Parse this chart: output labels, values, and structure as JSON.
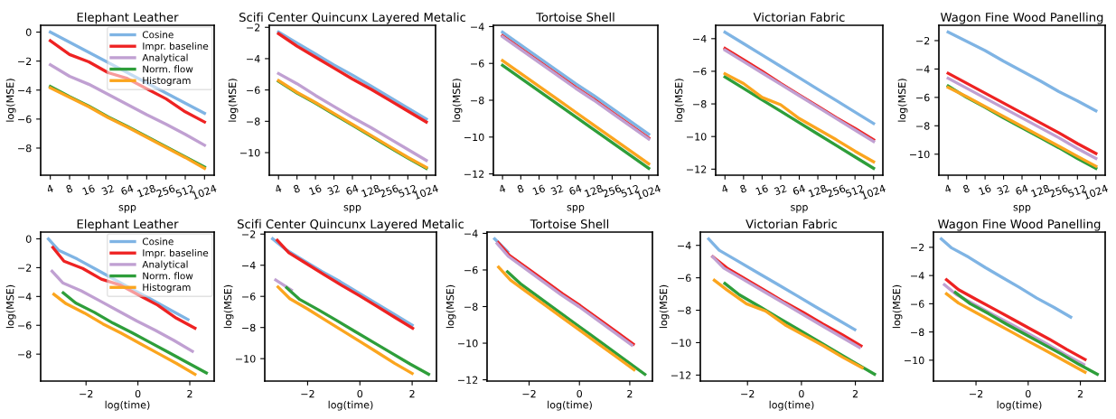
{
  "chart_data": [
    {
      "type": "line",
      "title": "Elephant Leather",
      "xlabel": "spp",
      "ylabel": "log(MSE)",
      "categories": [
        "4",
        "8",
        "16",
        "32",
        "64",
        "128",
        "256",
        "512",
        "1024"
      ],
      "ylim": [
        -9.87,
        0.47
      ],
      "yticks": [
        {
          "value": 0,
          "label": "0"
        },
        {
          "value": -2,
          "label": "−2"
        },
        {
          "value": -4,
          "label": "−4"
        },
        {
          "value": -6,
          "label": "−6"
        },
        {
          "value": -8,
          "label": "−8"
        }
      ],
      "legend": "top right",
      "series": [
        {
          "name": "Cosine",
          "color": "#7fb4e4",
          "values": [
            0,
            -0.7,
            -1.4,
            -2.1,
            -2.8,
            -3.5,
            -4.2,
            -4.9,
            -5.6
          ]
        },
        {
          "name": "Impr. baseline",
          "color": "#ee2222",
          "values": [
            -0.6,
            -1.55,
            -2.05,
            -2.8,
            -3.2,
            -3.9,
            -4.6,
            -5.5,
            -6.2
          ]
        },
        {
          "name": "Analytical",
          "color": "#c0a0d2",
          "values": [
            -2.25,
            -3.05,
            -3.6,
            -4.3,
            -5.0,
            -5.7,
            -6.35,
            -7.05,
            -7.8
          ]
        },
        {
          "name": "Norm. flow",
          "color": "#2e9e3a",
          "values": [
            -3.75,
            -4.45,
            -5.1,
            -5.85,
            -6.5,
            -7.2,
            -7.9,
            -8.6,
            -9.3
          ]
        },
        {
          "name": "Histogram",
          "color": "#fba51e",
          "values": [
            -3.85,
            -4.5,
            -5.15,
            -5.9,
            -6.55,
            -7.25,
            -7.95,
            -8.65,
            -9.4
          ]
        }
      ]
    },
    {
      "type": "line",
      "title": "Scifi Center Quincunx Layered Metalic",
      "xlabel": "spp",
      "ylabel": "log(MSE)",
      "categories": [
        "4",
        "8",
        "16",
        "32",
        "64",
        "128",
        "256",
        "512",
        "1024"
      ],
      "ylim": [
        -11.44,
        -1.87
      ],
      "yticks": [
        {
          "value": -2,
          "label": "−2"
        },
        {
          "value": -4,
          "label": "−4"
        },
        {
          "value": -6,
          "label": "−6"
        },
        {
          "value": -8,
          "label": "−8"
        },
        {
          "value": -10,
          "label": "−10"
        }
      ],
      "series": [
        {
          "color": "#7fb4e4",
          "values": [
            -2.3,
            -3.0,
            -3.7,
            -4.4,
            -5.05,
            -5.75,
            -6.45,
            -7.15,
            -7.85
          ]
        },
        {
          "color": "#ee2222",
          "values": [
            -2.4,
            -3.2,
            -3.9,
            -4.6,
            -5.3,
            -5.95,
            -6.65,
            -7.35,
            -8.05
          ]
        },
        {
          "color": "#c0a0d2",
          "values": [
            -4.95,
            -5.6,
            -6.35,
            -7.05,
            -7.75,
            -8.4,
            -9.1,
            -9.8,
            -10.5
          ]
        },
        {
          "color": "#2e9e3a",
          "values": [
            -5.45,
            -6.2,
            -6.85,
            -7.55,
            -8.25,
            -8.95,
            -9.65,
            -10.35,
            -11.0
          ]
        },
        {
          "color": "#fba51e",
          "values": [
            -5.4,
            -6.15,
            -6.8,
            -7.5,
            -8.2,
            -8.9,
            -9.6,
            -10.3,
            -10.95
          ]
        }
      ]
    },
    {
      "type": "line",
      "title": "Tortoise Shell",
      "xlabel": "spp",
      "ylabel": "log(MSE)",
      "categories": [
        "4",
        "8",
        "16",
        "32",
        "64",
        "128",
        "256",
        "512",
        "1024"
      ],
      "ylim": [
        -12.07,
        -3.93
      ],
      "yticks": [
        {
          "value": -4,
          "label": "−4"
        },
        {
          "value": -6,
          "label": "−6"
        },
        {
          "value": -8,
          "label": "−8"
        },
        {
          "value": -10,
          "label": "−10"
        },
        {
          "value": -12,
          "label": "−12"
        }
      ],
      "series": [
        {
          "color": "#7fb4e4",
          "values": [
            -4.3,
            -5.0,
            -5.7,
            -6.4,
            -7.1,
            -7.75,
            -8.45,
            -9.15,
            -9.85
          ]
        },
        {
          "color": "#ee2222",
          "values": [
            -4.5,
            -5.2,
            -5.9,
            -6.6,
            -7.3,
            -7.95,
            -8.65,
            -9.35,
            -10.05
          ]
        },
        {
          "color": "#c0a0d2",
          "values": [
            -4.55,
            -5.25,
            -5.95,
            -6.65,
            -7.35,
            -8.0,
            -8.7,
            -9.4,
            -10.1
          ]
        },
        {
          "color": "#2e9e3a",
          "values": [
            -6.1,
            -6.8,
            -7.5,
            -8.2,
            -8.9,
            -9.6,
            -10.3,
            -11.0,
            -11.7
          ]
        },
        {
          "color": "#fba51e",
          "values": [
            -5.85,
            -6.55,
            -7.25,
            -7.95,
            -8.65,
            -9.35,
            -10.05,
            -10.75,
            -11.45
          ]
        }
      ]
    },
    {
      "type": "line",
      "title": "Victorian Fabric",
      "xlabel": "spp",
      "ylabel": "log(MSE)",
      "categories": [
        "4",
        "8",
        "16",
        "32",
        "64",
        "128",
        "256",
        "512",
        "1024"
      ],
      "ylim": [
        -12.37,
        -3.18
      ],
      "yticks": [
        {
          "value": -4,
          "label": "−4"
        },
        {
          "value": -6,
          "label": "−6"
        },
        {
          "value": -8,
          "label": "−8"
        },
        {
          "value": -10,
          "label": "−10"
        },
        {
          "value": -12,
          "label": "−12"
        }
      ],
      "series": [
        {
          "color": "#7fb4e4",
          "values": [
            -3.6,
            -4.3,
            -5.0,
            -5.7,
            -6.4,
            -7.1,
            -7.8,
            -8.5,
            -9.2
          ]
        },
        {
          "color": "#ee2222",
          "values": [
            -4.6,
            -5.3,
            -6.0,
            -6.75,
            -7.45,
            -8.15,
            -8.85,
            -9.5,
            -10.2
          ]
        },
        {
          "color": "#c0a0d2",
          "values": [
            -4.7,
            -5.4,
            -6.1,
            -6.8,
            -7.5,
            -8.2,
            -8.9,
            -9.6,
            -10.3
          ]
        },
        {
          "color": "#2e9e3a",
          "values": [
            -6.35,
            -7.05,
            -7.75,
            -8.45,
            -9.15,
            -9.85,
            -10.55,
            -11.25,
            -11.95
          ]
        },
        {
          "color": "#fba51e",
          "values": [
            -6.15,
            -6.75,
            -7.6,
            -8.05,
            -8.9,
            -9.55,
            -10.2,
            -10.9,
            -11.55
          ]
        }
      ]
    },
    {
      "type": "line",
      "title": "Wagon Fine Wood Panelling",
      "xlabel": "spp",
      "ylabel": "log(MSE)",
      "categories": [
        "4",
        "8",
        "16",
        "32",
        "64",
        "128",
        "256",
        "512",
        "1024"
      ],
      "ylim": [
        -11.48,
        -0.92
      ],
      "yticks": [
        {
          "value": -2,
          "label": "−2"
        },
        {
          "value": -4,
          "label": "−4"
        },
        {
          "value": -6,
          "label": "−6"
        },
        {
          "value": -8,
          "label": "−8"
        },
        {
          "value": -10,
          "label": "−10"
        }
      ],
      "series": [
        {
          "color": "#7fb4e4",
          "values": [
            -1.4,
            -2.05,
            -2.7,
            -3.45,
            -4.15,
            -4.85,
            -5.6,
            -6.25,
            -6.95
          ]
        },
        {
          "color": "#ee2222",
          "values": [
            -4.3,
            -5.0,
            -5.7,
            -6.4,
            -7.1,
            -7.8,
            -8.5,
            -9.25,
            -9.95
          ]
        },
        {
          "color": "#c0a0d2",
          "values": [
            -4.65,
            -5.35,
            -6.05,
            -6.75,
            -7.45,
            -8.15,
            -8.85,
            -9.6,
            -10.3
          ]
        },
        {
          "color": "#2e9e3a",
          "values": [
            -5.2,
            -6.0,
            -6.7,
            -7.45,
            -8.15,
            -8.85,
            -9.55,
            -10.3,
            -11.0
          ]
        },
        {
          "color": "#fba51e",
          "values": [
            -5.3,
            -5.95,
            -6.65,
            -7.35,
            -8.05,
            -8.75,
            -9.45,
            -10.15,
            -10.85
          ]
        }
      ]
    },
    {
      "type": "line",
      "title": "Elephant Leather",
      "xlabel": "log(time)",
      "ylabel": "log(MSE)",
      "xlim": [
        -3.75,
        2.94
      ],
      "xticks": [
        {
          "value": -2,
          "label": "−2"
        },
        {
          "value": 0,
          "label": "0"
        },
        {
          "value": 2,
          "label": "2"
        }
      ],
      "ylim": [
        -9.87,
        0.47
      ],
      "yticks": [
        {
          "value": 0,
          "label": "0"
        },
        {
          "value": -2,
          "label": "−2"
        },
        {
          "value": -4,
          "label": "−4"
        },
        {
          "value": -6,
          "label": "−6"
        },
        {
          "value": -8,
          "label": "−8"
        }
      ],
      "legend": "top right",
      "series": [
        {
          "name": "Cosine",
          "color": "#7fb4e4",
          "x": [
            -3.45,
            -3.05,
            -2.34,
            -1.63,
            -0.92,
            -0.21,
            0.51,
            1.22,
            1.93
          ],
          "values": [
            0,
            -0.8,
            -1.4,
            -2.1,
            -2.8,
            -3.5,
            -4.2,
            -4.9,
            -5.6
          ]
        },
        {
          "name": "Impr. baseline",
          "color": "#ee2222",
          "x": [
            -3.28,
            -2.85,
            -2.13,
            -1.41,
            -0.69,
            0.03,
            0.76,
            1.48,
            2.2
          ],
          "values": [
            -0.6,
            -1.55,
            -2.05,
            -2.8,
            -3.2,
            -3.9,
            -4.6,
            -5.5,
            -6.2
          ]
        },
        {
          "name": "Analytical",
          "color": "#c0a0d2",
          "x": [
            -3.31,
            -2.9,
            -2.19,
            -1.47,
            -0.76,
            -0.04,
            0.67,
            1.39,
            2.1
          ],
          "values": [
            -2.25,
            -3.05,
            -3.6,
            -4.3,
            -5.0,
            -5.7,
            -6.35,
            -7.05,
            -7.8
          ]
        },
        {
          "name": "Norm. flow",
          "color": "#2e9e3a",
          "x": [
            -2.88,
            -2.4,
            -1.68,
            -0.96,
            -0.24,
            0.48,
            1.2,
            1.92,
            2.64
          ],
          "values": [
            -3.75,
            -4.45,
            -5.1,
            -5.85,
            -6.5,
            -7.2,
            -7.9,
            -8.6,
            -9.3
          ]
        },
        {
          "name": "Histogram",
          "color": "#fba51e",
          "x": [
            -3.24,
            -2.77,
            -2.06,
            -1.35,
            -0.64,
            0.07,
            0.78,
            1.49,
            2.2
          ],
          "values": [
            -3.85,
            -4.5,
            -5.15,
            -5.9,
            -6.55,
            -7.25,
            -7.95,
            -8.65,
            -9.4
          ]
        }
      ]
    },
    {
      "type": "line",
      "title": "Scifi Center Quincunx Layered Metalic",
      "xlabel": "log(time)",
      "ylabel": "log(MSE)",
      "xlim": [
        -3.64,
        2.93
      ],
      "xticks": [
        {
          "value": -2,
          "label": "−2"
        },
        {
          "value": 0,
          "label": "0"
        },
        {
          "value": 2,
          "label": "2"
        }
      ],
      "ylim": [
        -11.44,
        -1.87
      ],
      "yticks": [
        {
          "value": -2,
          "label": "−2"
        },
        {
          "value": -4,
          "label": "−4"
        },
        {
          "value": -6,
          "label": "−6"
        },
        {
          "value": -8,
          "label": "−8"
        },
        {
          "value": -10,
          "label": "−10"
        }
      ],
      "series": [
        {
          "color": "#7fb4e4",
          "x": [
            -3.34,
            -2.83,
            -2.14,
            -1.45,
            -0.76,
            -0.07,
            0.62,
            1.31,
            2.0
          ],
          "values": [
            -2.3,
            -3.0,
            -3.7,
            -4.4,
            -5.05,
            -5.75,
            -6.45,
            -7.15,
            -7.85
          ]
        },
        {
          "color": "#ee2222",
          "x": [
            -3.16,
            -2.72,
            -2.04,
            -1.37,
            -0.69,
            -0.02,
            0.66,
            1.34,
            2.02
          ],
          "values": [
            -2.4,
            -3.2,
            -3.9,
            -4.6,
            -5.3,
            -5.95,
            -6.65,
            -7.35,
            -8.05
          ]
        },
        {
          "color": "#c0a0d2",
          "x": [
            -3.22,
            -2.62
          ],
          "values": [
            -4.95,
            -5.6
          ]
        },
        {
          "color": "#2e9e3a",
          "x": [
            -2.8,
            -2.3,
            -1.6,
            -0.89,
            -0.19,
            0.52,
            1.22,
            1.93,
            2.63
          ],
          "values": [
            -5.45,
            -6.2,
            -6.85,
            -7.55,
            -8.25,
            -8.95,
            -9.65,
            -10.35,
            -11.0
          ]
        },
        {
          "color": "#fba51e",
          "x": [
            -3.13,
            -2.68,
            -2.01,
            -1.34,
            -0.67,
            0.0,
            0.67,
            1.33,
            2.0
          ],
          "values": [
            -5.4,
            -6.15,
            -6.8,
            -7.5,
            -8.2,
            -8.9,
            -9.6,
            -10.3,
            -10.95
          ]
        }
      ]
    },
    {
      "type": "line",
      "title": "Tortoise Shell",
      "xlabel": "log(time)",
      "ylabel": "log(MSE)",
      "xlim": [
        -3.67,
        2.9
      ],
      "xticks": [
        {
          "value": -2,
          "label": "−2"
        },
        {
          "value": 0,
          "label": "0"
        },
        {
          "value": 2,
          "label": "2"
        }
      ],
      "ylim": [
        -12.07,
        -3.93
      ],
      "yticks": [
        {
          "value": -4,
          "label": "−4"
        },
        {
          "value": -6,
          "label": "−6"
        },
        {
          "value": -8,
          "label": "−8"
        },
        {
          "value": -10,
          "label": "−10"
        },
        {
          "value": -12,
          "label": "−12"
        }
      ],
      "series": [
        {
          "color": "#7fb4e4",
          "x": [
            -3.37,
            -2.85
          ],
          "values": [
            -4.3,
            -5.0
          ]
        },
        {
          "color": "#ee2222",
          "x": [
            -3.23,
            -2.78,
            -2.08,
            -1.37,
            -0.67,
            0.03,
            0.73,
            1.44,
            2.14
          ],
          "values": [
            -4.5,
            -5.2,
            -5.9,
            -6.6,
            -7.3,
            -7.95,
            -8.65,
            -9.35,
            -10.05
          ]
        },
        {
          "color": "#c0a0d2",
          "x": [
            -3.27,
            -2.83,
            -2.13,
            -1.43,
            -0.73,
            -0.02,
            0.68,
            1.38,
            2.08
          ],
          "values": [
            -4.55,
            -5.25,
            -5.95,
            -6.65,
            -7.35,
            -8.0,
            -8.7,
            -9.4,
            -10.1
          ]
        },
        {
          "color": "#2e9e3a",
          "x": [
            -2.86,
            -2.3,
            -1.6,
            -0.9,
            -0.2,
            0.5,
            1.2,
            1.9,
            2.6
          ],
          "values": [
            -6.1,
            -6.8,
            -7.5,
            -8.2,
            -8.9,
            -9.6,
            -10.3,
            -11.0,
            -11.7
          ]
        },
        {
          "color": "#fba51e",
          "x": [
            -3.21,
            -2.74,
            -2.04,
            -1.34,
            -0.64,
            0.07,
            0.77,
            1.47,
            2.17
          ],
          "values": [
            -5.85,
            -6.55,
            -7.25,
            -7.95,
            -8.65,
            -9.35,
            -10.05,
            -10.75,
            -11.45
          ]
        }
      ]
    },
    {
      "type": "line",
      "title": "Victorian Fabric",
      "xlabel": "log(time)",
      "ylabel": "log(MSE)",
      "xlim": [
        -3.75,
        3.02
      ],
      "xticks": [
        {
          "value": -2,
          "label": "−2"
        },
        {
          "value": 0,
          "label": "0"
        },
        {
          "value": 2,
          "label": "2"
        }
      ],
      "ylim": [
        -12.37,
        -3.18
      ],
      "yticks": [
        {
          "value": -4,
          "label": "−4"
        },
        {
          "value": -6,
          "label": "−6"
        },
        {
          "value": -8,
          "label": "−8"
        },
        {
          "value": -10,
          "label": "−10"
        },
        {
          "value": -12,
          "label": "−12"
        }
      ],
      "series": [
        {
          "color": "#7fb4e4",
          "x": [
            -3.44,
            -3.05,
            -2.33,
            -1.61,
            -0.89,
            -0.17,
            0.54,
            1.26,
            1.98
          ],
          "values": [
            -3.6,
            -4.3,
            -5.0,
            -5.7,
            -6.4,
            -7.1,
            -7.8,
            -8.5,
            -9.2
          ]
        },
        {
          "color": "#ee2222",
          "x": [
            -3.29,
            -2.76,
            -2.05,
            -1.34,
            -0.63,
            0.08,
            0.79,
            1.5,
            2.21
          ],
          "values": [
            -4.7,
            -5.4,
            -6.1,
            -6.8,
            -7.5,
            -8.15,
            -8.85,
            -9.5,
            -10.2
          ]
        },
        {
          "color": "#c0a0d2",
          "x": [
            -3.29,
            -2.88,
            -2.16,
            -1.44,
            -0.72,
            -0.01,
            0.71,
            1.43,
            2.15
          ],
          "values": [
            -4.7,
            -5.4,
            -6.1,
            -6.8,
            -7.5,
            -8.2,
            -8.9,
            -9.6,
            -10.3
          ]
        },
        {
          "color": "#2e9e3a",
          "x": [
            -2.84,
            -2.3,
            -1.58,
            -0.87,
            -0.15,
            0.56,
            1.28,
            1.99,
            2.71
          ],
          "values": [
            -6.35,
            -7.05,
            -7.75,
            -8.45,
            -9.15,
            -9.85,
            -10.55,
            -11.25,
            -11.95
          ]
        },
        {
          "color": "#fba51e",
          "x": [
            -3.23,
            -2.76,
            -2.04,
            -1.33,
            -0.61,
            0.1,
            0.82,
            1.53,
            2.25
          ],
          "values": [
            -6.15,
            -6.75,
            -7.6,
            -8.05,
            -8.9,
            -9.55,
            -10.2,
            -10.9,
            -11.55
          ]
        }
      ]
    },
    {
      "type": "line",
      "title": "Wagon Fine Wood Panelling",
      "xlabel": "log(time)",
      "ylabel": "log(MSE)",
      "xlim": [
        -3.63,
        2.95
      ],
      "xticks": [
        {
          "value": -2,
          "label": "−2"
        },
        {
          "value": 0,
          "label": "0"
        },
        {
          "value": 2,
          "label": "2"
        }
      ],
      "ylim": [
        -11.48,
        -0.92
      ],
      "yticks": [
        {
          "value": -2,
          "label": "−2"
        },
        {
          "value": -4,
          "label": "−4"
        },
        {
          "value": -6,
          "label": "−6"
        },
        {
          "value": -8,
          "label": "−8"
        },
        {
          "value": -10,
          "label": "−10"
        }
      ],
      "series": [
        {
          "color": "#7fb4e4",
          "x": [
            -3.33,
            -2.93,
            -2.28,
            -1.63,
            -0.98,
            -0.33,
            0.33,
            0.98,
            1.63
          ],
          "values": [
            -1.4,
            -2.05,
            -2.7,
            -3.45,
            -4.15,
            -4.85,
            -5.6,
            -6.25,
            -6.95
          ]
        },
        {
          "color": "#ee2222",
          "x": [
            -3.13,
            -2.67,
            -1.98,
            -1.28,
            -0.59,
            0.1,
            0.8,
            1.49,
            2.18
          ],
          "values": [
            -4.3,
            -5.0,
            -5.7,
            -6.4,
            -7.1,
            -7.8,
            -8.5,
            -9.25,
            -9.95
          ]
        },
        {
          "color": "#c0a0d2",
          "x": [
            -3.21,
            -2.75,
            -2.05,
            -1.36,
            -0.66,
            0.04,
            0.73,
            1.43,
            2.13
          ],
          "values": [
            -4.65,
            -5.35,
            -6.05,
            -6.75,
            -7.45,
            -8.15,
            -8.85,
            -9.6,
            -10.3
          ]
        },
        {
          "color": "#2e9e3a",
          "x": [
            -2.79,
            -2.22,
            -1.52,
            -0.83,
            -0.13,
            0.56,
            1.26,
            1.95,
            2.65
          ],
          "values": [
            -5.2,
            -6.0,
            -6.7,
            -7.45,
            -8.15,
            -8.85,
            -9.55,
            -10.3,
            -11.0
          ]
        },
        {
          "color": "#fba51e",
          "x": [
            -3.13,
            -2.67,
            -1.98,
            -1.28,
            -0.59,
            0.1,
            0.8,
            1.49,
            2.18
          ],
          "values": [
            -5.3,
            -5.95,
            -6.65,
            -7.35,
            -8.05,
            -8.75,
            -9.45,
            -10.15,
            -10.85
          ]
        }
      ]
    }
  ]
}
